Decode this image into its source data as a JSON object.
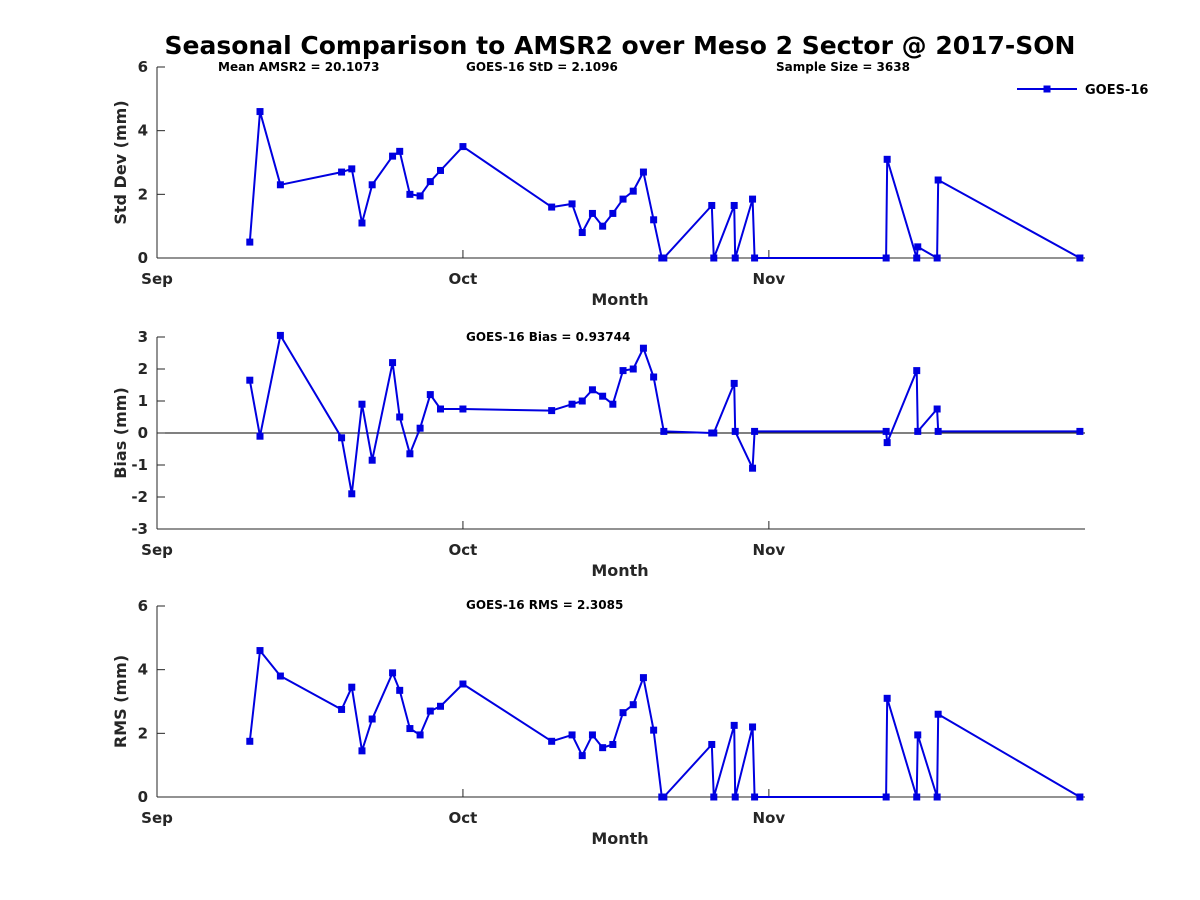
{
  "figure": {
    "title": "Seasonal Comparison to AMSR2 over Meso 2 Sector @ 2017-SON"
  },
  "chart_data": [
    {
      "type": "line",
      "id": "stddev",
      "xlabel": "Month",
      "ylabel": "Std Dev (mm)",
      "ylim": [
        0,
        6
      ],
      "yticks": [
        "0",
        "2",
        "4",
        "6"
      ],
      "xlim": [
        1,
        92
      ],
      "xtick_labels": [
        {
          "label": "Sep",
          "day": 1
        },
        {
          "label": "Oct",
          "day": 31
        },
        {
          "label": "Nov",
          "day": 61
        }
      ],
      "annotations": [
        "Mean AMSR2 = 20.1073",
        "GOES-16 StD = 2.1096",
        "Sample Size = 3638"
      ],
      "legend": {
        "entries": [
          "GOES-16"
        ],
        "placement": "top-right"
      },
      "zero_line": false,
      "series": [
        {
          "name": "GOES-16",
          "color": "#0000e0",
          "marker": "square",
          "x": [
            10.1,
            11.1,
            13.1,
            19.1,
            20.1,
            21.1,
            22.1,
            24.1,
            24.8,
            25.8,
            26.8,
            27.8,
            28.8,
            31.0,
            39.7,
            41.7,
            42.7,
            43.7,
            44.7,
            45.7,
            46.7,
            47.7,
            48.7,
            49.7,
            50.5,
            50.7,
            55.4,
            55.6,
            57.6,
            57.7,
            59.4,
            59.6,
            72.5,
            72.6,
            75.5,
            75.6,
            77.5,
            77.6,
            91.5
          ],
          "y": [
            0.5,
            4.6,
            2.3,
            2.7,
            2.8,
            1.1,
            2.3,
            3.2,
            3.35,
            2.0,
            1.95,
            2.4,
            2.75,
            3.5,
            1.6,
            1.7,
            0.8,
            1.4,
            1.0,
            1.4,
            1.85,
            2.1,
            2.7,
            1.2,
            0.0,
            0.0,
            1.65,
            0.0,
            1.65,
            0.0,
            1.85,
            0.0,
            0.0,
            3.1,
            0.0,
            0.35,
            0.0,
            2.45,
            0.0
          ]
        }
      ]
    },
    {
      "type": "line",
      "id": "bias",
      "xlabel": "Month",
      "ylabel": "Bias (mm)",
      "ylim": [
        -3,
        3
      ],
      "yticks": [
        "-3",
        "-2",
        "-1",
        "0",
        "1",
        "2",
        "3"
      ],
      "xlim": [
        1,
        92
      ],
      "xtick_labels": [
        {
          "label": "Sep",
          "day": 1
        },
        {
          "label": "Oct",
          "day": 31
        },
        {
          "label": "Nov",
          "day": 61
        }
      ],
      "annotations": [
        "GOES-16 Bias = 0.93744"
      ],
      "zero_line": true,
      "series": [
        {
          "name": "GOES-16",
          "color": "#0000e0",
          "marker": "square",
          "x": [
            10.1,
            11.1,
            13.1,
            19.1,
            20.1,
            21.1,
            22.1,
            24.1,
            24.8,
            25.8,
            26.8,
            27.8,
            28.8,
            31.0,
            39.7,
            41.7,
            42.7,
            43.7,
            44.7,
            45.7,
            46.7,
            47.7,
            48.7,
            49.7,
            50.7,
            55.4,
            55.6,
            57.6,
            57.7,
            59.4,
            59.6,
            72.5,
            72.6,
            75.5,
            75.6,
            77.5,
            77.6,
            91.5
          ],
          "y": [
            1.65,
            -0.1,
            3.05,
            -0.15,
            -1.9,
            0.9,
            -0.85,
            2.2,
            0.5,
            -0.65,
            0.15,
            1.2,
            0.75,
            0.75,
            0.7,
            0.9,
            1.0,
            1.35,
            1.15,
            0.9,
            1.95,
            2.0,
            2.65,
            1.75,
            0.05,
            0.0,
            0.0,
            1.55,
            0.05,
            -1.1,
            0.05,
            0.05,
            -0.3,
            1.95,
            0.05,
            0.75,
            0.05,
            0.05
          ]
        }
      ]
    },
    {
      "type": "line",
      "id": "rms",
      "xlabel": "Month",
      "ylabel": "RMS (mm)",
      "ylim": [
        0,
        6
      ],
      "yticks": [
        "0",
        "2",
        "4",
        "6"
      ],
      "xlim": [
        1,
        92
      ],
      "xtick_labels": [
        {
          "label": "Sep",
          "day": 1
        },
        {
          "label": "Oct",
          "day": 31
        },
        {
          "label": "Nov",
          "day": 61
        }
      ],
      "annotations": [
        "GOES-16 RMS = 2.3085"
      ],
      "zero_line": false,
      "series": [
        {
          "name": "GOES-16",
          "color": "#0000e0",
          "marker": "square",
          "x": [
            10.1,
            11.1,
            13.1,
            19.1,
            20.1,
            21.1,
            22.1,
            24.1,
            24.8,
            25.8,
            26.8,
            27.8,
            28.8,
            31.0,
            39.7,
            41.7,
            42.7,
            43.7,
            44.7,
            45.7,
            46.7,
            47.7,
            48.7,
            49.7,
            50.5,
            50.7,
            55.4,
            55.6,
            57.6,
            57.7,
            59.4,
            59.6,
            72.5,
            72.6,
            75.5,
            75.6,
            77.5,
            77.6,
            91.5
          ],
          "y": [
            1.75,
            4.6,
            3.8,
            2.75,
            3.45,
            1.45,
            2.45,
            3.9,
            3.35,
            2.15,
            1.95,
            2.7,
            2.85,
            3.55,
            1.75,
            1.95,
            1.3,
            1.95,
            1.55,
            1.65,
            2.65,
            2.9,
            3.75,
            2.1,
            0.0,
            0.0,
            1.65,
            0.0,
            2.25,
            0.0,
            2.2,
            0.0,
            0.0,
            3.1,
            0.0,
            1.95,
            0.0,
            2.6,
            0.0
          ]
        }
      ]
    }
  ]
}
